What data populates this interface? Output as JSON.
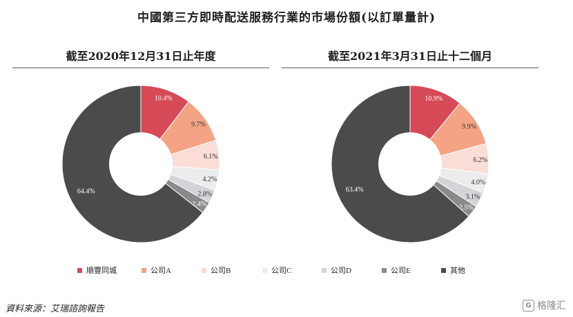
{
  "title": "中國第三方即時配送服務行業的市場份額(以訂單量計)",
  "source": "資料來源：艾瑞諮詢報告",
  "watermark": "格隆汇",
  "watermark_logo": "G",
  "legend": [
    {
      "label": "順豐同城",
      "color": "#d64a58"
    },
    {
      "label": "公司A",
      "color": "#f4a384"
    },
    {
      "label": "公司B",
      "color": "#f9ddd6"
    },
    {
      "label": "公司C",
      "color": "#ececec"
    },
    {
      "label": "公司D",
      "color": "#d3d4d8"
    },
    {
      "label": "公司E",
      "color": "#8a8a8a"
    },
    {
      "label": "其他",
      "color": "#4b4b4b"
    }
  ],
  "chart_data": [
    {
      "type": "pie",
      "title": "截至2020年12月31日止年度",
      "categories": [
        "順豐同城",
        "公司A",
        "公司B",
        "公司C",
        "公司D",
        "公司E",
        "其他"
      ],
      "values": [
        10.4,
        9.7,
        6.1,
        4.2,
        2.8,
        2.4,
        64.4
      ],
      "labels": [
        "10.4%",
        "9.7%",
        "6.1%",
        "4.2%",
        "2.8%",
        "2.4%",
        "64.4%"
      ],
      "donut": true,
      "legend_position": "bottom"
    },
    {
      "type": "pie",
      "title": "截至2021年3月31日止十二個月",
      "categories": [
        "順豐同城",
        "公司A",
        "公司B",
        "公司C",
        "公司D",
        "公司E",
        "其他"
      ],
      "values": [
        10.9,
        9.9,
        6.2,
        4.0,
        3.1,
        2.5,
        63.4
      ],
      "labels": [
        "10.9%",
        "9.9%",
        "6.2%",
        "4.0%",
        "3.1%",
        "2.5%",
        "63.4%"
      ],
      "donut": true,
      "legend_position": "bottom"
    }
  ]
}
